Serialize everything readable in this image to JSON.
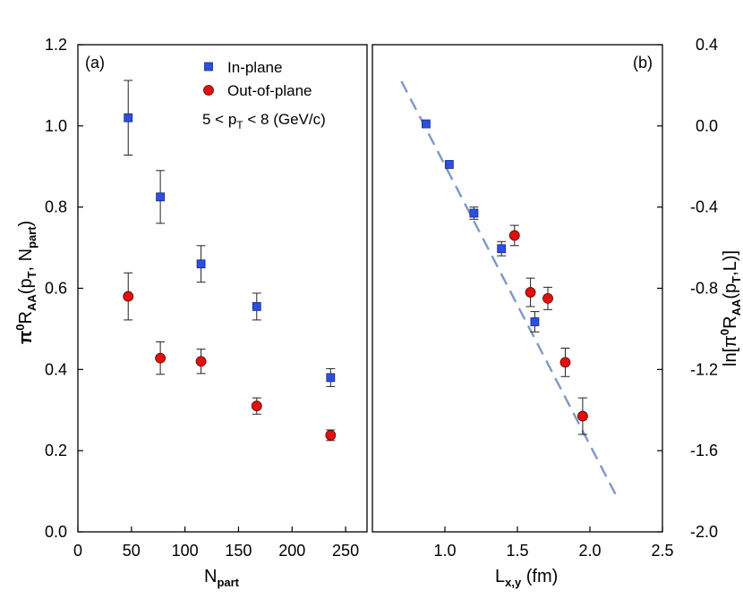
{
  "chart_data": [
    {
      "panel_label": "(a)",
      "type": "scatter",
      "xlabel": {
        "main": "N",
        "sub": "part"
      },
      "ylabel": {
        "pre": "π",
        "sup": "0",
        "mid": "R",
        "sub": "AA",
        "post": "(p",
        "sub2": "T",
        "post2": ", N",
        "sub3": "part",
        "post3": ")"
      },
      "xlim": [
        0,
        270
      ],
      "ylim": [
        0.0,
        1.2
      ],
      "xticks": [
        0,
        50,
        100,
        150,
        200,
        250
      ],
      "xtick_labels": [
        "0",
        "50",
        "100",
        "150",
        "200",
        "250"
      ],
      "yticks": [
        0.0,
        0.2,
        0.4,
        0.6,
        0.8,
        1.0,
        1.2
      ],
      "ytick_labels": [
        "0.0",
        "0.2",
        "0.4",
        "0.6",
        "0.8",
        "1.0",
        "1.2"
      ],
      "annotation": {
        "pre": "5 < p",
        "sub": "T",
        "post": " < 8  (GeV/c)"
      },
      "legend": [
        {
          "name": "In-plane",
          "marker": "square",
          "color": "#2b4fe0"
        },
        {
          "name": "Out-of-plane",
          "marker": "circle",
          "color": "#e01010"
        }
      ],
      "series": [
        {
          "name": "In-plane",
          "marker": "square",
          "color": "#2b4fe0",
          "x": [
            47,
            77,
            115,
            167,
            236
          ],
          "y": [
            1.02,
            0.825,
            0.66,
            0.555,
            0.38
          ],
          "err": [
            0.092,
            0.065,
            0.045,
            0.033,
            0.022
          ]
        },
        {
          "name": "Out-of-plane",
          "marker": "circle",
          "color": "#e01010",
          "x": [
            47,
            77,
            115,
            167,
            236
          ],
          "y": [
            0.58,
            0.428,
            0.42,
            0.31,
            0.238
          ],
          "err": [
            0.058,
            0.04,
            0.03,
            0.02,
            0.013
          ]
        }
      ]
    },
    {
      "panel_label": "(b)",
      "type": "scatter",
      "xlabel": {
        "main": "L",
        "sub": "x,y",
        "post": " (fm)"
      },
      "ylabel": {
        "pre": "ln[π",
        "sup": "0",
        "mid": "R",
        "sub": "AA",
        "post": "(p",
        "sub2": "T",
        "post2": ",L)]"
      },
      "xlim": [
        0.5,
        2.5
      ],
      "ylim": [
        -2.0,
        0.4
      ],
      "xticks": [
        1.0,
        1.5,
        2.0,
        2.5
      ],
      "xtick_labels": [
        "1.0",
        "1.5",
        "2.0",
        "2.5"
      ],
      "yticks": [
        -2.0,
        -1.6,
        -1.2,
        -0.8,
        -0.4,
        0.0,
        0.4
      ],
      "ytick_labels": [
        "-2.0",
        "-1.6",
        "-1.2",
        "-0.8",
        "-0.4",
        "0.0",
        "0.4"
      ],
      "fit_line": {
        "x": [
          0.7,
          2.18
        ],
        "y": [
          0.22,
          -1.82
        ],
        "color": "#7f97c8",
        "style": "dashed"
      },
      "series": [
        {
          "name": "In-plane",
          "marker": "square",
          "color": "#2b4fe0",
          "x": [
            0.87,
            1.03,
            1.2,
            1.39,
            1.62
          ],
          "y": [
            0.01,
            -0.19,
            -0.43,
            -0.605,
            -0.965
          ],
          "err": [
            0.0,
            0.0,
            0.03,
            0.035,
            0.05
          ]
        },
        {
          "name": "Out-of-plane",
          "marker": "circle",
          "color": "#e01010",
          "x": [
            1.48,
            1.59,
            1.71,
            1.83,
            1.95
          ],
          "y": [
            -0.54,
            -0.82,
            -0.85,
            -1.165,
            -1.43
          ],
          "err": [
            0.05,
            0.07,
            0.055,
            0.07,
            0.09
          ]
        }
      ]
    }
  ]
}
